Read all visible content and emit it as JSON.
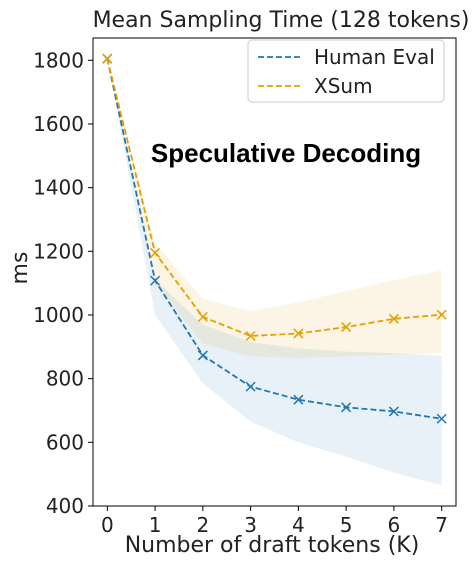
{
  "chart_data": {
    "type": "line",
    "title": "Mean Sampling Time (128 tokens)",
    "xlabel": "Number of draft tokens (K)",
    "ylabel": "ms",
    "annotation": "Speculative Decoding",
    "x": [
      0,
      1,
      2,
      3,
      4,
      5,
      6,
      7
    ],
    "xlim": [
      -0.3,
      7.3
    ],
    "ylim": [
      400,
      1870
    ],
    "xticks": [
      0,
      1,
      2,
      3,
      4,
      5,
      6,
      7
    ],
    "yticks": [
      400,
      600,
      800,
      1000,
      1200,
      1400,
      1600,
      1800
    ],
    "grid": false,
    "legend_position": "top-right",
    "series": [
      {
        "name": "Human Eval",
        "color": "#1f77b4",
        "marker": "x",
        "linestyle": "dashed",
        "values": [
          1805,
          1108,
          873,
          775,
          734,
          710,
          697,
          674
        ],
        "band_lower": [
          1805,
          1000,
          785,
          665,
          600,
          555,
          505,
          465
        ],
        "band_upper": [
          1805,
          1110,
          970,
          915,
          895,
          885,
          880,
          872
        ]
      },
      {
        "name": "XSum",
        "color": "#e69f00",
        "marker": "x",
        "linestyle": "dashed",
        "values": [
          1805,
          1195,
          994,
          934,
          942,
          962,
          988,
          1001
        ],
        "band_lower": [
          1805,
          1100,
          910,
          870,
          865,
          870,
          875,
          880
        ],
        "band_upper": [
          1805,
          1225,
          1050,
          1012,
          1040,
          1075,
          1110,
          1140
        ]
      }
    ]
  }
}
